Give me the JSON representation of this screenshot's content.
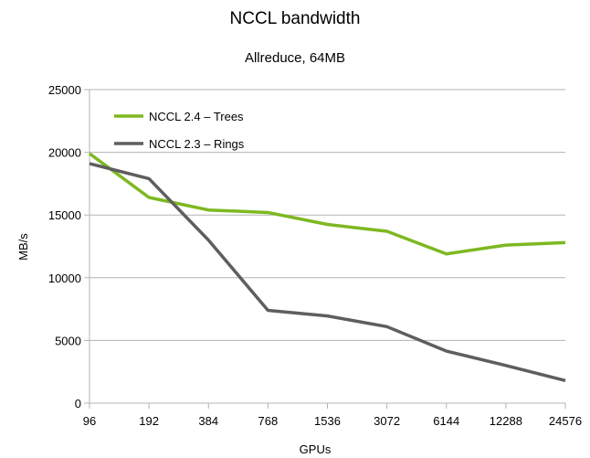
{
  "chart_data": {
    "type": "line",
    "title": "NCCL bandwidth",
    "subtitle": "Allreduce, 64MB",
    "xlabel": "GPUs",
    "ylabel": "MB/s",
    "categories": [
      "96",
      "192",
      "384",
      "768",
      "1536",
      "3072",
      "6144",
      "12288",
      "24576"
    ],
    "ylim": [
      0,
      25000
    ],
    "yticks": [
      "0",
      "5000",
      "10000",
      "15000",
      "20000",
      "25000"
    ],
    "grid": true,
    "legend_position": "top-left",
    "series": [
      {
        "name": "NCCL 2.4 – Trees",
        "color": "#7eb821",
        "values": [
          19900,
          16400,
          15400,
          15200,
          14250,
          13700,
          11900,
          12600,
          12800
        ]
      },
      {
        "name": "NCCL 2.3 – Rings",
        "color": "#5e5e5e",
        "values": [
          19100,
          17900,
          13000,
          7400,
          6950,
          6100,
          4150,
          3000,
          1800
        ]
      }
    ]
  }
}
